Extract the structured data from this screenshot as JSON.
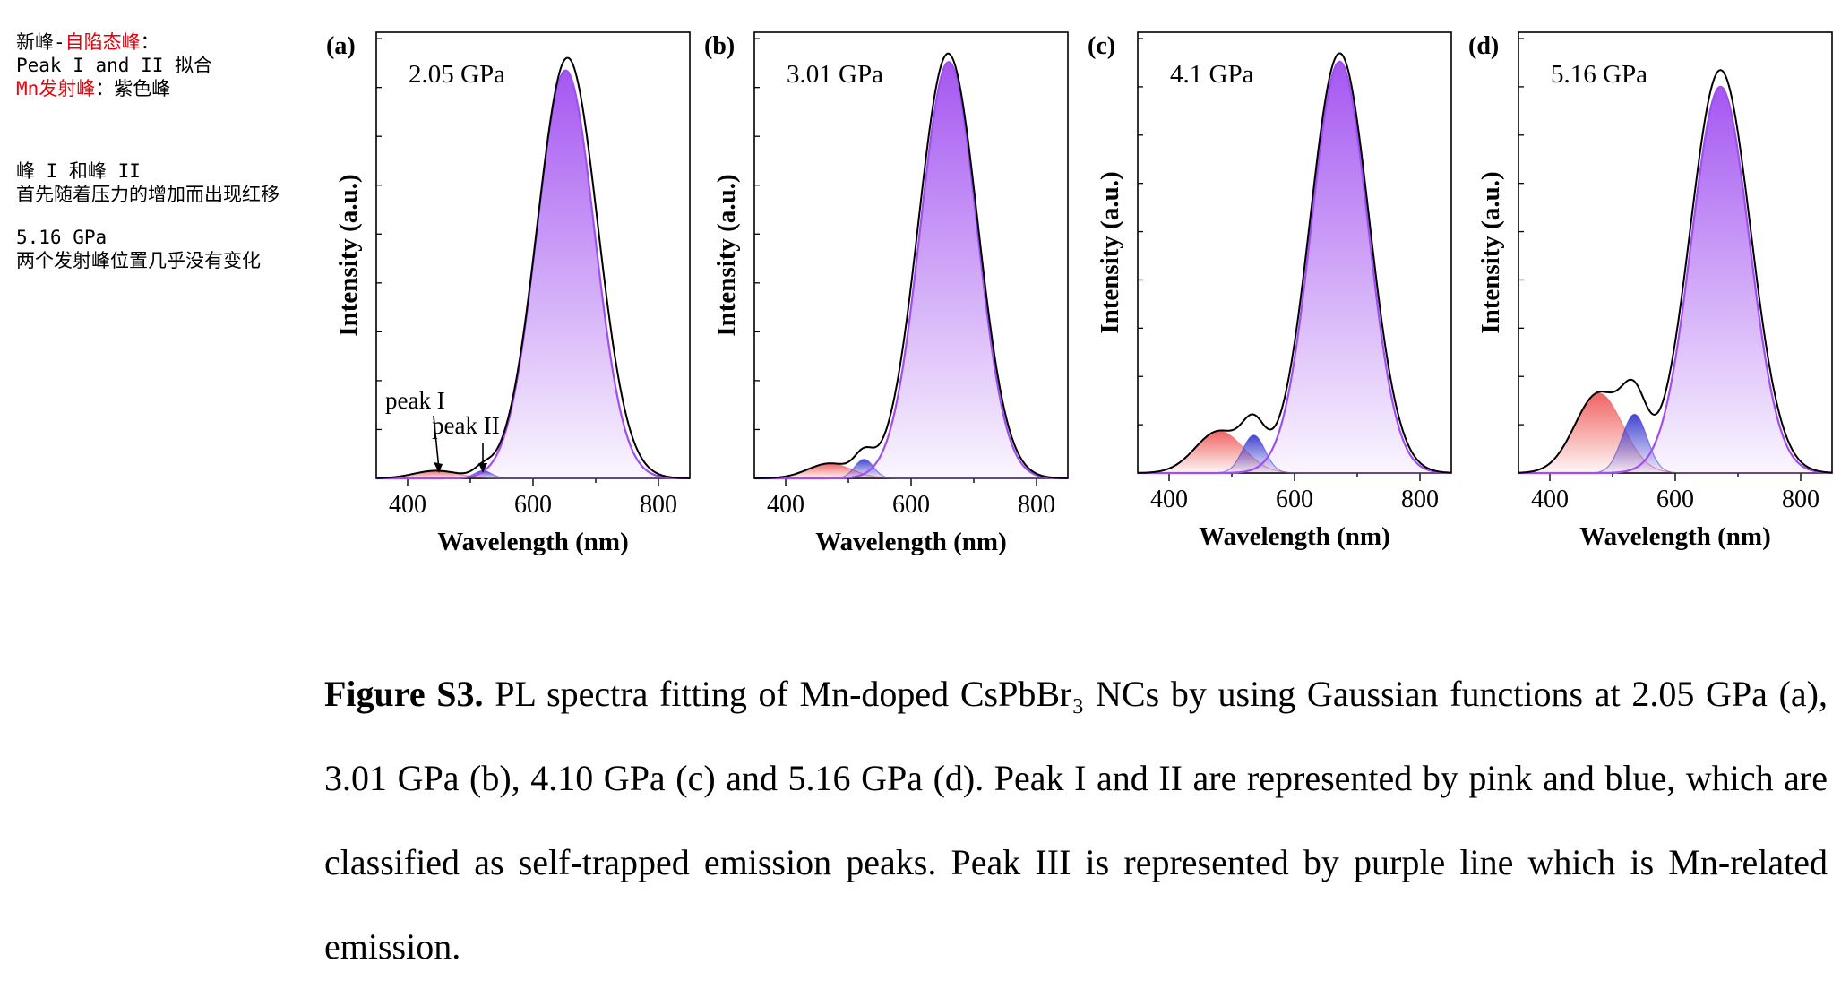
{
  "notes": {
    "line1_prefix": "新峰-",
    "line1_red": "自陷态峰",
    "line1_suffix": "：",
    "line2": "Peak I and II 拟合",
    "line3_red": "Mn发射峰",
    "line3_suffix": "：紫色峰",
    "line4": "峰 I 和峰 II",
    "line5": "首先随着压力的增加而出现红移",
    "line6": "5.16 GPa",
    "line7": "两个发射峰位置几乎没有变化"
  },
  "caption": {
    "label": "Figure S3.",
    "text": "PL spectra fitting of Mn-doped CsPbBr₃ NCs by using Gaussian functions at 2.05 GPa (a), 3.01 GPa (b), 4.10 GPa (c) and 5.16 GPa (d). Peak I and II are represented by pink and blue, which are classified as self-trapped emission peaks. Peak III is represented by purple line which is Mn-related emission."
  },
  "colors": {
    "peak1": "#f05c5c",
    "peak2": "#3a3ad0",
    "peak3": "#a04ef0",
    "measured": "#000000"
  },
  "chart_data": [
    {
      "type": "area",
      "panel_label": "(a)",
      "pressure_label": "2.05 GPa",
      "xlabel": "Wavelength (nm)",
      "ylabel": "Intensity (a.u.)",
      "xlim": [
        350,
        850
      ],
      "ylim": [
        0,
        1.05
      ],
      "xticks": [
        400,
        600,
        800
      ],
      "peaks": [
        {
          "name": "peak I",
          "center": 445,
          "amplitude": 0.018,
          "sigma": 35
        },
        {
          "name": "peak II",
          "center": 520,
          "amplitude": 0.018,
          "sigma": 14
        },
        {
          "name": "Peak III",
          "center": 652,
          "amplitude": 0.96,
          "sigma": 46
        }
      ],
      "measured_peak": {
        "center": 655,
        "amplitude": 0.99,
        "sigma": 48
      },
      "annotations": [
        {
          "text": "peak I",
          "target_x": 450
        },
        {
          "text": "peak II",
          "target_x": 520
        }
      ]
    },
    {
      "type": "area",
      "panel_label": "(b)",
      "pressure_label": "3.01 GPa",
      "xlabel": "Wavelength (nm)",
      "ylabel": "Intensity (a.u.)",
      "xlim": [
        350,
        850
      ],
      "ylim": [
        0,
        1.05
      ],
      "xticks": [
        400,
        600,
        800
      ],
      "peaks": [
        {
          "name": "peak I",
          "center": 470,
          "amplitude": 0.035,
          "sigma": 35
        },
        {
          "name": "peak II",
          "center": 525,
          "amplitude": 0.045,
          "sigma": 15
        },
        {
          "name": "Peak III",
          "center": 660,
          "amplitude": 0.98,
          "sigma": 45
        }
      ],
      "measured_peak": {
        "center": 659,
        "amplitude": 1.0,
        "sigma": 47
      }
    },
    {
      "type": "area",
      "panel_label": "(c)",
      "pressure_label": "4.1 GPa",
      "xlabel": "Wavelength (nm)",
      "ylabel": "Intensity (a.u.)",
      "xlim": [
        350,
        850
      ],
      "ylim": [
        0,
        1.05
      ],
      "xticks": [
        400,
        600,
        800
      ],
      "peaks": [
        {
          "name": "peak I",
          "center": 480,
          "amplitude": 0.1,
          "sigma": 38
        },
        {
          "name": "peak II",
          "center": 535,
          "amplitude": 0.09,
          "sigma": 18
        },
        {
          "name": "Peak III",
          "center": 672,
          "amplitude": 0.98,
          "sigma": 45
        }
      ],
      "measured_peak": {
        "center": 672,
        "amplitude": 1.0,
        "sigma": 47
      }
    },
    {
      "type": "area",
      "panel_label": "(d)",
      "pressure_label": "5.16 GPa",
      "xlabel": "Wavelength (nm)",
      "ylabel": "Intensity (a.u.)",
      "xlim": [
        350,
        850
      ],
      "ylim": [
        0,
        1.05
      ],
      "xticks": [
        400,
        600,
        800
      ],
      "peaks": [
        {
          "name": "peak I",
          "center": 478,
          "amplitude": 0.19,
          "sigma": 38
        },
        {
          "name": "peak II",
          "center": 535,
          "amplitude": 0.14,
          "sigma": 20
        },
        {
          "name": "Peak III",
          "center": 672,
          "amplitude": 0.92,
          "sigma": 46
        }
      ],
      "measured_peak": {
        "center": 672,
        "amplitude": 0.96,
        "sigma": 48
      }
    }
  ]
}
